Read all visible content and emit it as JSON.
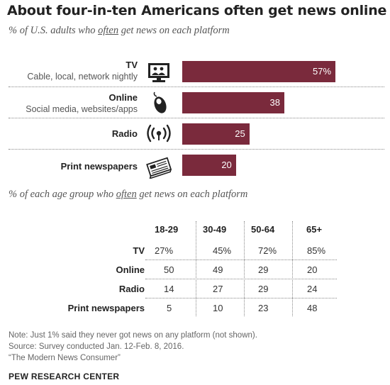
{
  "title": "About four-in-ten Americans often get news online",
  "subtitle1_pre": "% of U.S. adults who ",
  "subtitle1_em": "often",
  "subtitle1_post": " get news on each platform",
  "subtitle2_pre": "% of each age group who ",
  "subtitle2_em": "often",
  "subtitle2_post": " get news on each platform",
  "chart_data": {
    "type": "bar",
    "orientation": "horizontal",
    "title": "About four-in-ten Americans often get news online",
    "categories": [
      "TV",
      "Online",
      "Radio",
      "Print newspapers"
    ],
    "category_sublabels": [
      "Cable, local, network nightly",
      "Social media, websites/apps",
      "",
      ""
    ],
    "values": [
      57,
      38,
      25,
      20
    ],
    "value_labels": [
      "57%",
      "38",
      "25",
      "20"
    ],
    "xlim": [
      0,
      100
    ],
    "bar_color": "#7a2a3c",
    "icons": [
      "tv-icon",
      "mouse-icon",
      "radio-icon",
      "newspaper-icon"
    ]
  },
  "age_table": {
    "columns": [
      "18-29",
      "30-49",
      "50-64",
      "65+"
    ],
    "rows": [
      {
        "label": "TV",
        "values": [
          "27%",
          "45%",
          "72%",
          "85%"
        ]
      },
      {
        "label": "Online",
        "values": [
          "50",
          "49",
          "29",
          "20"
        ]
      },
      {
        "label": "Radio",
        "values": [
          "14",
          "27",
          "29",
          "24"
        ]
      },
      {
        "label": "Print newspapers",
        "values": [
          "5",
          "10",
          "23",
          "48"
        ]
      }
    ]
  },
  "notes": {
    "note": "Note: Just 1% said they never got news on any platform (not shown).",
    "source": "Source: Survey conducted Jan. 12-Feb. 8, 2016.",
    "report": "“The Modern News Consumer”"
  },
  "footer": "PEW RESEARCH CENTER"
}
